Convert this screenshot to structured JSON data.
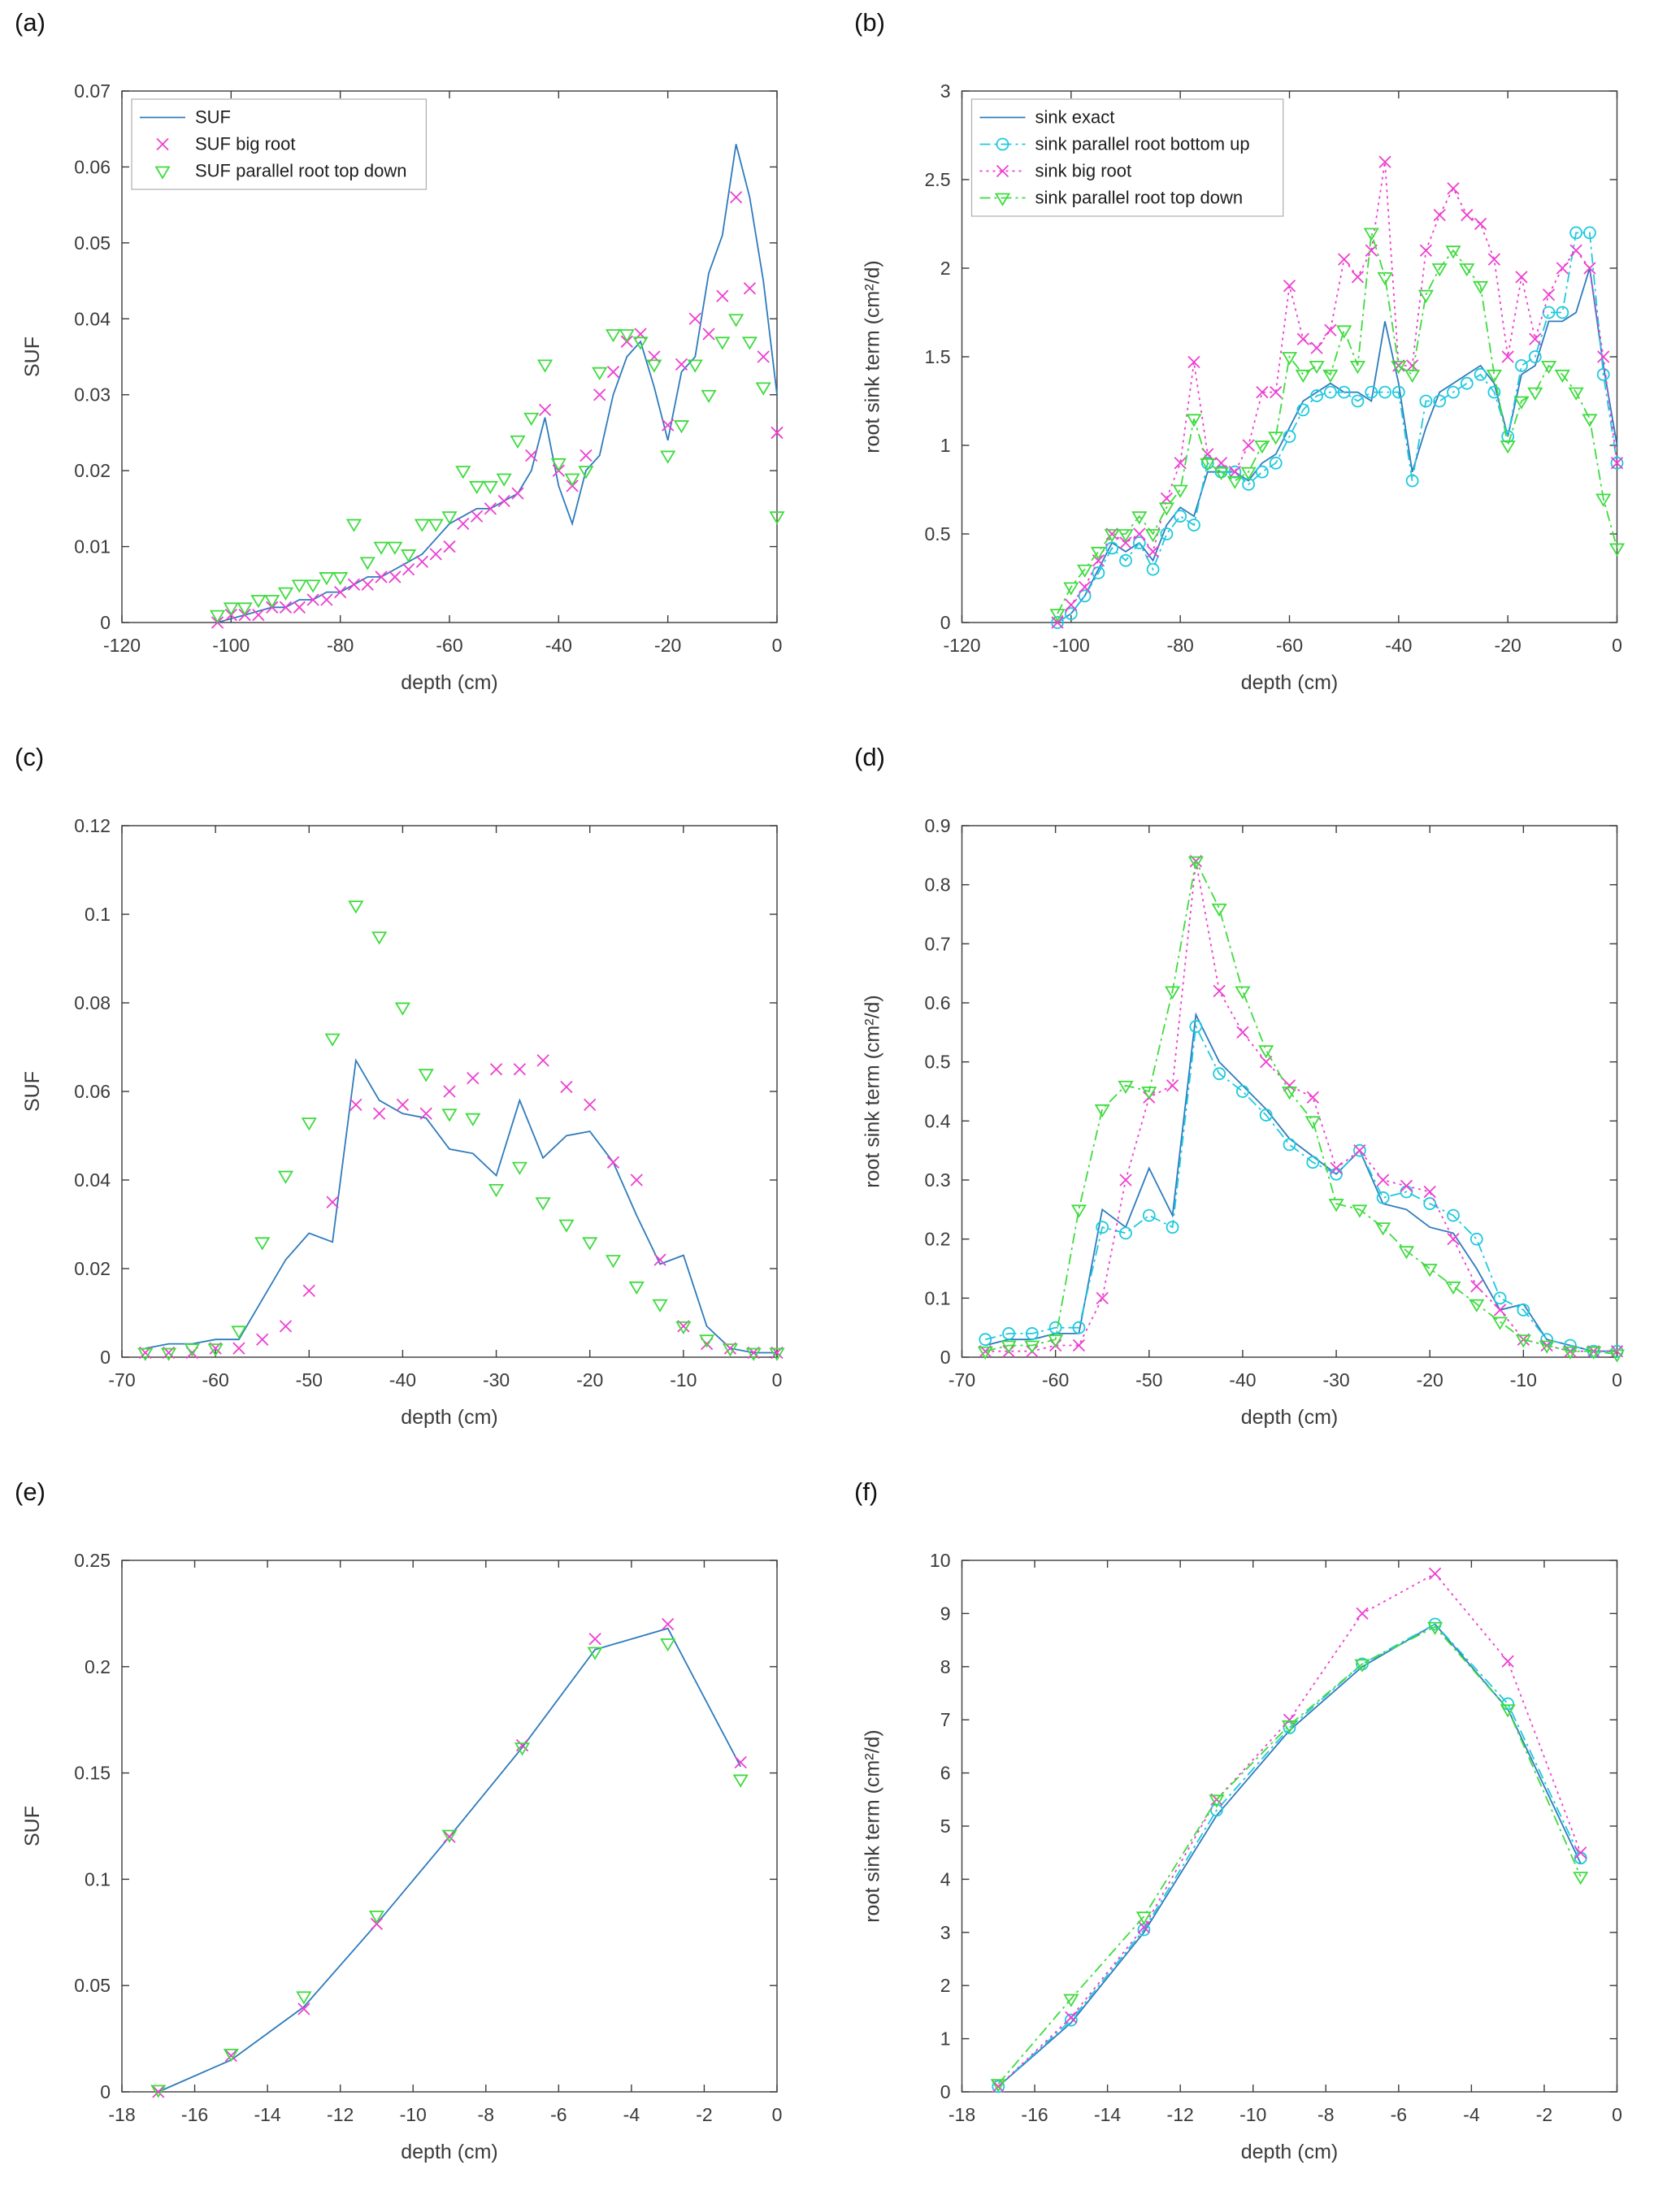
{
  "colors": {
    "blue": "#2E7BBD",
    "cyan": "#1FC9DE",
    "magenta": "#EE3FD0",
    "green": "#3FDB3F"
  },
  "chart_data": [
    {
      "panel_label": "(a)",
      "type": "line",
      "xlabel": "depth (cm)",
      "ylabel": "SUF",
      "xlim": [
        -120,
        0
      ],
      "ylim": [
        0,
        0.07
      ],
      "xticks": [
        -120,
        -100,
        -80,
        -60,
        -40,
        -20,
        0
      ],
      "yticks": [
        0,
        0.01,
        0.02,
        0.03,
        0.04,
        0.05,
        0.06,
        0.07
      ],
      "show_legend": true,
      "legend_position": "top-left",
      "x": [
        -102.5,
        -100,
        -97.5,
        -95,
        -92.5,
        -90,
        -87.5,
        -85,
        -82.5,
        -80,
        -77.5,
        -75,
        -72.5,
        -70,
        -67.5,
        -65,
        -62.5,
        -60,
        -57.5,
        -55,
        -52.5,
        -50,
        -47.5,
        -45,
        -42.5,
        -40,
        -37.5,
        -35,
        -32.5,
        -30,
        -27.5,
        -25,
        -22.5,
        -20,
        -17.5,
        -15,
        -12.5,
        -10,
        -7.5,
        -5,
        -2.5,
        0
      ],
      "series": [
        {
          "name": "SUF",
          "color": "blue",
          "line": "solid",
          "marker": "none",
          "y": [
            0,
            0.0005,
            0.001,
            0.0015,
            0.002,
            0.002,
            0.003,
            0.003,
            0.004,
            0.004,
            0.005,
            0.006,
            0.006,
            0.007,
            0.008,
            0.009,
            0.011,
            0.013,
            0.014,
            0.015,
            0.015,
            0.016,
            0.017,
            0.02,
            0.027,
            0.018,
            0.013,
            0.02,
            0.022,
            0.03,
            0.035,
            0.037,
            0.031,
            0.024,
            0.033,
            0.035,
            0.046,
            0.051,
            0.063,
            0.056,
            0.045,
            0.03
          ]
        },
        {
          "name": "SUF big root",
          "color": "magenta",
          "line": "none",
          "marker": "x",
          "y": [
            0,
            0.001,
            0.001,
            0.001,
            0.002,
            0.002,
            0.002,
            0.003,
            0.003,
            0.004,
            0.005,
            0.005,
            0.006,
            0.006,
            0.007,
            0.008,
            0.009,
            0.01,
            0.013,
            0.014,
            0.015,
            0.016,
            0.017,
            0.022,
            0.028,
            0.02,
            0.018,
            0.022,
            0.03,
            0.033,
            0.037,
            0.038,
            0.035,
            0.026,
            0.034,
            0.04,
            0.038,
            0.043,
            0.056,
            0.044,
            0.035,
            0.025
          ]
        },
        {
          "name": "SUF parallel root top down",
          "color": "green",
          "line": "none",
          "marker": "triangle-down",
          "y": [
            0.001,
            0.002,
            0.002,
            0.003,
            0.003,
            0.004,
            0.005,
            0.005,
            0.006,
            0.006,
            0.013,
            0.008,
            0.01,
            0.01,
            0.009,
            0.013,
            0.013,
            0.014,
            0.02,
            0.018,
            0.018,
            0.019,
            0.024,
            0.027,
            0.034,
            0.021,
            0.019,
            0.02,
            0.033,
            0.038,
            0.038,
            0.037,
            0.034,
            0.022,
            0.026,
            0.034,
            0.03,
            0.037,
            0.04,
            0.037,
            0.031,
            0.014
          ]
        }
      ]
    },
    {
      "panel_label": "(b)",
      "type": "line",
      "xlabel": "depth (cm)",
      "ylabel": "root sink term (cm²/d)",
      "xlim": [
        -120,
        0
      ],
      "ylim": [
        0,
        3
      ],
      "xticks": [
        -120,
        -100,
        -80,
        -60,
        -40,
        -20,
        0
      ],
      "yticks": [
        0,
        0.5,
        1,
        1.5,
        2,
        2.5,
        3
      ],
      "show_legend": true,
      "legend_position": "top-left",
      "x": [
        -102.5,
        -100,
        -97.5,
        -95,
        -92.5,
        -90,
        -87.5,
        -85,
        -82.5,
        -80,
        -77.5,
        -75,
        -72.5,
        -70,
        -67.5,
        -65,
        -62.5,
        -60,
        -57.5,
        -55,
        -52.5,
        -50,
        -47.5,
        -45,
        -42.5,
        -40,
        -37.5,
        -35,
        -32.5,
        -30,
        -27.5,
        -25,
        -22.5,
        -20,
        -17.5,
        -15,
        -12.5,
        -10,
        -7.5,
        -5,
        -2.5,
        0
      ],
      "series": [
        {
          "name": "sink exact",
          "color": "blue",
          "line": "solid",
          "marker": "none",
          "y": [
            0,
            0.05,
            0.15,
            0.3,
            0.45,
            0.4,
            0.45,
            0.35,
            0.55,
            0.65,
            0.6,
            0.85,
            0.85,
            0.85,
            0.8,
            0.9,
            0.95,
            1.1,
            1.25,
            1.3,
            1.35,
            1.3,
            1.3,
            1.25,
            1.7,
            1.35,
            0.85,
            1.1,
            1.3,
            1.35,
            1.4,
            1.45,
            1.35,
            1.05,
            1.4,
            1.45,
            1.7,
            1.7,
            1.75,
            2,
            1.45,
            1
          ]
        },
        {
          "name": "sink parallel root bottom up",
          "color": "cyan",
          "line": "dashdot",
          "marker": "circle",
          "y": [
            0,
            0.05,
            0.15,
            0.28,
            0.42,
            0.35,
            0.45,
            0.3,
            0.5,
            0.6,
            0.55,
            0.9,
            0.85,
            0.85,
            0.78,
            0.85,
            0.9,
            1.05,
            1.2,
            1.28,
            1.3,
            1.3,
            1.25,
            1.3,
            1.3,
            1.3,
            0.8,
            1.25,
            1.25,
            1.3,
            1.35,
            1.4,
            1.3,
            1.05,
            1.45,
            1.5,
            1.75,
            1.75,
            2.2,
            2.2,
            1.4,
            0.9
          ]
        },
        {
          "name": "sink big root",
          "color": "magenta",
          "line": "dotted",
          "marker": "x",
          "y": [
            0,
            0.1,
            0.2,
            0.35,
            0.5,
            0.45,
            0.5,
            0.4,
            0.7,
            0.9,
            1.47,
            0.95,
            0.9,
            0.85,
            1,
            1.3,
            1.3,
            1.9,
            1.6,
            1.55,
            1.65,
            2.05,
            1.95,
            2.1,
            2.6,
            1.45,
            1.45,
            2.1,
            2.3,
            2.45,
            2.3,
            2.25,
            2.05,
            1.5,
            1.95,
            1.6,
            1.85,
            2,
            2.1,
            2,
            1.5,
            0.9
          ]
        },
        {
          "name": "sink parallel root top down",
          "color": "green",
          "line": "dashdot",
          "marker": "triangle-down",
          "y": [
            0.05,
            0.2,
            0.3,
            0.4,
            0.5,
            0.5,
            0.6,
            0.5,
            0.65,
            0.75,
            1.15,
            0.9,
            0.85,
            0.8,
            0.85,
            1,
            1.05,
            1.5,
            1.4,
            1.45,
            1.4,
            1.65,
            1.45,
            2.2,
            1.95,
            1.45,
            1.4,
            1.85,
            2,
            2.1,
            2,
            1.9,
            1.4,
            1,
            1.25,
            1.3,
            1.45,
            1.4,
            1.3,
            1.15,
            0.7,
            0.42
          ]
        }
      ]
    },
    {
      "panel_label": "(c)",
      "type": "line",
      "xlabel": "depth (cm)",
      "ylabel": "SUF",
      "xlim": [
        -70,
        0
      ],
      "ylim": [
        0,
        0.12
      ],
      "xticks": [
        -70,
        -60,
        -50,
        -40,
        -30,
        -20,
        -10,
        0
      ],
      "yticks": [
        0,
        0.02,
        0.04,
        0.06,
        0.08,
        0.1,
        0.12
      ],
      "show_legend": false,
      "legend_position": "none",
      "x": [
        -67.5,
        -65,
        -62.5,
        -60,
        -57.5,
        -55,
        -52.5,
        -50,
        -47.5,
        -45,
        -42.5,
        -40,
        -37.5,
        -35,
        -32.5,
        -30,
        -27.5,
        -25,
        -22.5,
        -20,
        -17.5,
        -15,
        -12.5,
        -10,
        -7.5,
        -5,
        -2.5,
        0
      ],
      "series": [
        {
          "name": "SUF",
          "color": "blue",
          "line": "solid",
          "marker": "none",
          "y": [
            0.002,
            0.003,
            0.003,
            0.004,
            0.004,
            0.013,
            0.022,
            0.028,
            0.026,
            0.067,
            0.058,
            0.055,
            0.054,
            0.047,
            0.046,
            0.041,
            0.058,
            0.045,
            0.05,
            0.051,
            0.044,
            0.032,
            0.021,
            0.023,
            0.007,
            0.002,
            0.001,
            0.001
          ]
        },
        {
          "name": "SUF big root",
          "color": "magenta",
          "line": "none",
          "marker": "x",
          "y": [
            0.001,
            0.001,
            0.001,
            0.002,
            0.002,
            0.004,
            0.007,
            0.015,
            0.035,
            0.057,
            0.055,
            0.057,
            0.055,
            0.06,
            0.063,
            0.065,
            0.065,
            0.067,
            0.061,
            0.057,
            0.044,
            0.04,
            0.022,
            0.007,
            0.003,
            0.002,
            0.001,
            0.001
          ]
        },
        {
          "name": "SUF parallel root top down",
          "color": "green",
          "line": "none",
          "marker": "triangle-down",
          "y": [
            0.001,
            0.001,
            0.002,
            0.002,
            0.006,
            0.026,
            0.041,
            0.053,
            0.072,
            0.102,
            0.095,
            0.079,
            0.064,
            0.055,
            0.054,
            0.038,
            0.043,
            0.035,
            0.03,
            0.026,
            0.022,
            0.016,
            0.012,
            0.007,
            0.004,
            0.002,
            0.001,
            0.001
          ]
        }
      ]
    },
    {
      "panel_label": "(d)",
      "type": "line",
      "xlabel": "depth (cm)",
      "ylabel": "root sink term (cm²/d)",
      "xlim": [
        -70,
        0
      ],
      "ylim": [
        0,
        0.9
      ],
      "xticks": [
        -70,
        -60,
        -50,
        -40,
        -30,
        -20,
        -10,
        0
      ],
      "yticks": [
        0,
        0.1,
        0.2,
        0.3,
        0.4,
        0.5,
        0.6,
        0.7,
        0.8,
        0.9
      ],
      "show_legend": false,
      "legend_position": "none",
      "x": [
        -67.5,
        -65,
        -62.5,
        -60,
        -57.5,
        -55,
        -52.5,
        -50,
        -47.5,
        -45,
        -42.5,
        -40,
        -37.5,
        -35,
        -32.5,
        -30,
        -27.5,
        -25,
        -22.5,
        -20,
        -17.5,
        -15,
        -12.5,
        -10,
        -7.5,
        -5,
        -2.5,
        0
      ],
      "series": [
        {
          "name": "sink exact",
          "color": "blue",
          "line": "solid",
          "marker": "none",
          "y": [
            0.02,
            0.03,
            0.03,
            0.04,
            0.04,
            0.25,
            0.22,
            0.32,
            0.24,
            0.58,
            0.5,
            0.46,
            0.42,
            0.37,
            0.34,
            0.31,
            0.35,
            0.26,
            0.25,
            0.22,
            0.21,
            0.15,
            0.08,
            0.09,
            0.03,
            0.02,
            0.01,
            0.01
          ]
        },
        {
          "name": "sink parallel root bottom up",
          "color": "cyan",
          "line": "dashdot",
          "marker": "circle",
          "y": [
            0.03,
            0.04,
            0.04,
            0.05,
            0.05,
            0.22,
            0.21,
            0.24,
            0.22,
            0.56,
            0.48,
            0.45,
            0.41,
            0.36,
            0.33,
            0.31,
            0.35,
            0.27,
            0.28,
            0.26,
            0.24,
            0.2,
            0.1,
            0.08,
            0.03,
            0.02,
            0.01,
            0.01
          ]
        },
        {
          "name": "sink big root",
          "color": "magenta",
          "line": "dotted",
          "marker": "x",
          "y": [
            0.01,
            0.01,
            0.01,
            0.02,
            0.02,
            0.1,
            0.3,
            0.44,
            0.46,
            0.84,
            0.62,
            0.55,
            0.5,
            0.46,
            0.44,
            0.32,
            0.35,
            0.3,
            0.29,
            0.28,
            0.2,
            0.12,
            0.08,
            0.03,
            0.02,
            0.01,
            0.01,
            0.01
          ]
        },
        {
          "name": "sink parallel root top down",
          "color": "green",
          "line": "dashdot",
          "marker": "triangle-down",
          "y": [
            0.01,
            0.02,
            0.02,
            0.03,
            0.25,
            0.42,
            0.46,
            0.45,
            0.62,
            0.84,
            0.76,
            0.62,
            0.52,
            0.45,
            0.4,
            0.26,
            0.25,
            0.22,
            0.18,
            0.15,
            0.12,
            0.09,
            0.06,
            0.03,
            0.02,
            0.01,
            0.01,
            0.005
          ]
        }
      ]
    },
    {
      "panel_label": "(e)",
      "type": "line",
      "xlabel": "depth (cm)",
      "ylabel": "SUF",
      "xlim": [
        -18,
        0
      ],
      "ylim": [
        0,
        0.25
      ],
      "xticks": [
        -18,
        -16,
        -14,
        -12,
        -10,
        -8,
        -6,
        -4,
        -2,
        0
      ],
      "yticks": [
        0,
        0.05,
        0.1,
        0.15,
        0.2,
        0.25
      ],
      "show_legend": false,
      "legend_position": "none",
      "x": [
        -17,
        -15,
        -13,
        -11,
        -9,
        -7,
        -5,
        -3,
        -1
      ],
      "series": [
        {
          "name": "SUF",
          "color": "blue",
          "line": "solid",
          "marker": "none",
          "y": [
            0,
            0.015,
            0.04,
            0.079,
            0.12,
            0.162,
            0.208,
            0.218,
            0.153
          ]
        },
        {
          "name": "SUF big root",
          "color": "magenta",
          "line": "none",
          "marker": "x",
          "y": [
            0,
            0.017,
            0.039,
            0.079,
            0.12,
            0.163,
            0.213,
            0.22,
            0.155
          ]
        },
        {
          "name": "SUF parallel root top down",
          "color": "green",
          "line": "none",
          "marker": "triangle-down",
          "y": [
            0.001,
            0.018,
            0.045,
            0.083,
            0.121,
            0.162,
            0.207,
            0.211,
            0.147
          ]
        }
      ]
    },
    {
      "panel_label": "(f)",
      "type": "line",
      "xlabel": "depth (cm)",
      "ylabel": "root sink term (cm²/d)",
      "xlim": [
        -18,
        0
      ],
      "ylim": [
        0,
        10
      ],
      "xticks": [
        -18,
        -16,
        -14,
        -12,
        -10,
        -8,
        -6,
        -4,
        -2,
        0
      ],
      "yticks": [
        0,
        1,
        2,
        3,
        4,
        5,
        6,
        7,
        8,
        9,
        10
      ],
      "show_legend": false,
      "legend_position": "none",
      "x": [
        -17,
        -15,
        -13,
        -11,
        -9,
        -7,
        -5,
        -3,
        -1
      ],
      "series": [
        {
          "name": "sink exact",
          "color": "blue",
          "line": "solid",
          "marker": "none",
          "y": [
            0.1,
            1.3,
            3,
            5.2,
            6.8,
            8,
            8.8,
            7.2,
            4.3
          ]
        },
        {
          "name": "sink parallel root bottom up",
          "color": "cyan",
          "line": "dashdot",
          "marker": "circle",
          "y": [
            0.1,
            1.35,
            3.05,
            5.3,
            6.85,
            8.05,
            8.8,
            7.3,
            4.4
          ]
        },
        {
          "name": "sink big root",
          "color": "magenta",
          "line": "dotted",
          "marker": "x",
          "y": [
            0.1,
            1.4,
            3.1,
            5.5,
            7,
            9,
            9.75,
            8.1,
            4.5
          ]
        },
        {
          "name": "sink parallel root top down",
          "color": "green",
          "line": "dashdot",
          "marker": "triangle-down",
          "y": [
            0.15,
            1.75,
            3.3,
            5.5,
            6.9,
            8.05,
            8.75,
            7.2,
            4.05
          ]
        }
      ]
    }
  ]
}
